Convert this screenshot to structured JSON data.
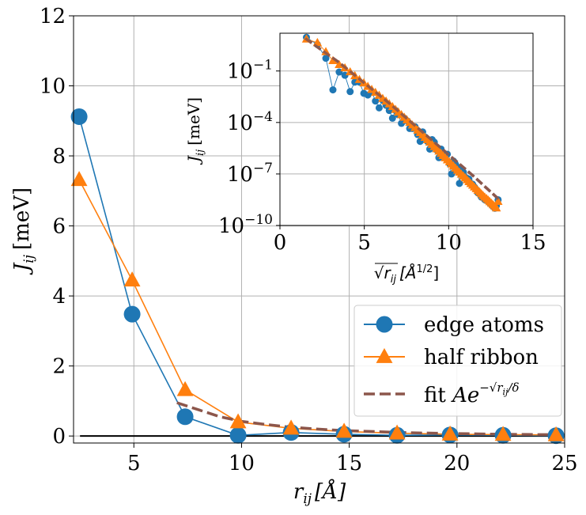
{
  "colors": {
    "edge": "#1f77b4",
    "half": "#ff7f0e",
    "fit": "#8c564b",
    "grid": "#b0b0b0",
    "axis": "#000000",
    "zero_line": "#000000"
  },
  "chart_data": [
    {
      "type": "line",
      "title": "",
      "xlabel_base": "r",
      "xlabel_sub": "ij",
      "xlabel_unit": "[Å]",
      "ylabel_base": "J",
      "ylabel_sub": "ij",
      "ylabel_unit": "[meV]",
      "xlim": [
        2.2,
        25
      ],
      "ylim": [
        -0.2,
        12
      ],
      "xticks": [
        5,
        10,
        15,
        20,
        25
      ],
      "xtick_labels": [
        "5",
        "10",
        "15",
        "20",
        "25"
      ],
      "yticks": [
        0,
        2,
        4,
        6,
        8,
        10,
        12
      ],
      "ytick_labels": [
        "0",
        "2",
        "4",
        "6",
        "8",
        "10",
        "12"
      ],
      "grid": true,
      "zero_line": {
        "y": 0,
        "x_range": [
          2.5,
          25
        ]
      },
      "legend": {
        "placement": "lower-right",
        "entries": [
          {
            "label": "edge atoms",
            "series": "edge"
          },
          {
            "label": "half ribbon",
            "series": "half"
          },
          {
            "label_text": "fit ",
            "label_math_base": "Ae",
            "label_math_exp": "−√r",
            "label_math_exp_sub": "ij",
            "label_math_exp_tail": "/δ",
            "series": "fit"
          }
        ]
      },
      "series": [
        {
          "name": "edge atoms",
          "key": "edge",
          "marker": "circle",
          "x": [
            2.46,
            4.92,
            7.38,
            9.84,
            12.3,
            14.76,
            17.22,
            19.68,
            22.14,
            24.6
          ],
          "y": [
            9.12,
            3.48,
            0.55,
            0.02,
            0.1,
            0.05,
            0.02,
            0.03,
            0.02,
            0.01
          ]
        },
        {
          "name": "half ribbon",
          "key": "half",
          "marker": "triangle",
          "x": [
            2.46,
            4.92,
            7.38,
            9.84,
            12.3,
            14.76,
            17.22,
            19.68,
            22.14,
            24.6
          ],
          "y": [
            7.32,
            4.45,
            1.32,
            0.4,
            0.22,
            0.13,
            0.08,
            0.05,
            0.04,
            0.03
          ]
        },
        {
          "name": "fit",
          "key": "fit",
          "marker": "none",
          "dashed": true,
          "x": [
            7.0,
            8.0,
            9.0,
            10.0,
            11.0,
            12.0,
            13.0,
            14.0,
            15.0,
            16.0,
            17.0,
            18.0,
            19.0,
            20.0,
            21.0,
            22.0,
            23.0,
            24.0,
            25.0
          ],
          "y": [
            0.95,
            0.75,
            0.55,
            0.42,
            0.34,
            0.27,
            0.22,
            0.18,
            0.15,
            0.13,
            0.11,
            0.09,
            0.08,
            0.07,
            0.06,
            0.05,
            0.045,
            0.04,
            0.035
          ]
        }
      ]
    },
    {
      "type": "scatter",
      "title": "",
      "inset": true,
      "xlabel_sqrt": "r",
      "xlabel_sub": "ij",
      "xlabel_unit_base": "[Å",
      "xlabel_unit_exp": "1/2",
      "xlabel_unit_tail": "]",
      "ylabel_base": "J",
      "ylabel_sub": "ij",
      "ylabel_unit": "[meV]",
      "xlim": [
        0,
        15
      ],
      "ylim_log10": [
        -10,
        1.2
      ],
      "yscale": "log",
      "xticks": [
        0,
        5,
        10,
        15
      ],
      "xtick_labels": [
        "0",
        "5",
        "10",
        "15"
      ],
      "yticks_log10": [
        -10,
        -7,
        -4,
        -1
      ],
      "ytick_base": "10",
      "ytick_exps": [
        "−10",
        "−7",
        "−4",
        "−1"
      ],
      "grid": true,
      "series": [
        {
          "name": "edge atoms",
          "key": "edge",
          "marker": "circle",
          "x": [
            1.57,
            2.22,
            2.72,
            3.14,
            3.51,
            3.85,
            4.16,
            4.44,
            4.71,
            4.97,
            5.21,
            5.44,
            5.66,
            5.88,
            6.09,
            6.29,
            6.48,
            6.67,
            6.85,
            7.02,
            7.2,
            7.37,
            7.53,
            7.69,
            7.85,
            8.01,
            8.16,
            8.31,
            8.46,
            8.6,
            8.74,
            8.88,
            9.02,
            9.15,
            9.29,
            9.42,
            9.55,
            9.67,
            9.8,
            9.92,
            10.05,
            10.17,
            10.29,
            10.41,
            10.52,
            10.64,
            10.75,
            10.87,
            10.98,
            11.09,
            11.2,
            11.31,
            11.42,
            11.52,
            11.63,
            11.73,
            11.84,
            11.94,
            12.04,
            12.14,
            12.25,
            12.35,
            12.44,
            12.54,
            12.64,
            12.74,
            12.83,
            12.93
          ],
          "log10y": [
            0.96,
            0.54,
            -0.26,
            -2.1,
            -1.06,
            -1.25,
            -2.2,
            -1.65,
            -1.65,
            -2.3,
            -2.4,
            -2.2,
            -2.75,
            -3.15,
            -2.7,
            -3.0,
            -3.3,
            -3.75,
            -3.3,
            -3.55,
            -4.05,
            -3.75,
            -3.9,
            -4.35,
            -4.35,
            -4.25,
            -4.7,
            -5.1,
            -4.55,
            -4.85,
            -5.1,
            -5.55,
            -5.0,
            -5.15,
            -5.6,
            -6.05,
            -5.55,
            -5.8,
            -5.95,
            -5.85,
            -6.4,
            -7.0,
            -6.25,
            -6.45,
            -6.6,
            -7.55,
            -6.75,
            -6.9,
            -7.2,
            -7.25,
            -7.3,
            -7.55,
            -7.6,
            -7.75,
            -7.9,
            -8.1,
            -8.15,
            -8.35,
            -8.35,
            -8.5,
            -8.55,
            -8.6,
            -8.7,
            -8.8,
            -8.9,
            -9.0,
            -8.85,
            -8.5
          ],
          "highlight_note": ""
        },
        {
          "name": "half ribbon",
          "key": "half",
          "marker": "triangle",
          "x": [
            1.57,
            2.22,
            2.72,
            3.14,
            3.51,
            3.85,
            4.16,
            4.44,
            4.71,
            4.97,
            5.21,
            5.44,
            5.66,
            5.88,
            6.09,
            6.29,
            6.48,
            6.67,
            6.85,
            7.02,
            7.2,
            7.37,
            7.53,
            7.69,
            7.85,
            8.01,
            8.16,
            8.31,
            8.46,
            8.6,
            8.74,
            8.88,
            9.02,
            9.15,
            9.29,
            9.42,
            9.55,
            9.67,
            9.8,
            9.92,
            10.05,
            10.17,
            10.29,
            10.41,
            10.52,
            10.64,
            10.75,
            10.87,
            10.98,
            11.09,
            11.2,
            11.31,
            11.42,
            11.52,
            11.63,
            11.73,
            11.84,
            11.94,
            12.04,
            12.14,
            12.25,
            12.35,
            12.44,
            12.54,
            12.64,
            12.74,
            12.83,
            12.93
          ],
          "log10y": [
            0.86,
            0.65,
            0.12,
            -0.4,
            -0.63,
            -0.82,
            -1.05,
            -1.28,
            -1.5,
            -1.7,
            -1.9,
            -2.08,
            -2.25,
            -2.42,
            -2.6,
            -2.76,
            -2.92,
            -3.08,
            -3.24,
            -3.4,
            -3.55,
            -3.7,
            -3.85,
            -4.0,
            -4.15,
            -4.3,
            -4.45,
            -4.59,
            -4.73,
            -4.87,
            -5.01,
            -5.15,
            -5.28,
            -5.41,
            -5.54,
            -5.67,
            -5.8,
            -5.93,
            -6.06,
            -6.18,
            -6.3,
            -6.42,
            -6.54,
            -6.66,
            -6.78,
            -6.9,
            -7.01,
            -7.12,
            -7.23,
            -7.34,
            -7.45,
            -7.56,
            -7.66,
            -7.76,
            -7.86,
            -7.96,
            -8.06,
            -8.16,
            -8.26,
            -8.35,
            -8.44,
            -8.53,
            -8.62,
            -8.71,
            -8.8,
            -8.89,
            -8.98,
            -8.6
          ]
        },
        {
          "name": "fit",
          "key": "fit",
          "marker": "none",
          "dashed": true,
          "x": [
            1.5,
            2.5,
            3.5,
            4.5,
            5.5,
            6.5,
            7.5,
            8.5,
            9.5,
            10.5,
            11.5,
            12.5,
            13.0
          ],
          "log10y": [
            0.9,
            0.2,
            -0.5,
            -1.3,
            -2.1,
            -2.9,
            -3.75,
            -4.6,
            -5.45,
            -6.3,
            -7.15,
            -8.05,
            -8.5
          ]
        }
      ]
    }
  ]
}
